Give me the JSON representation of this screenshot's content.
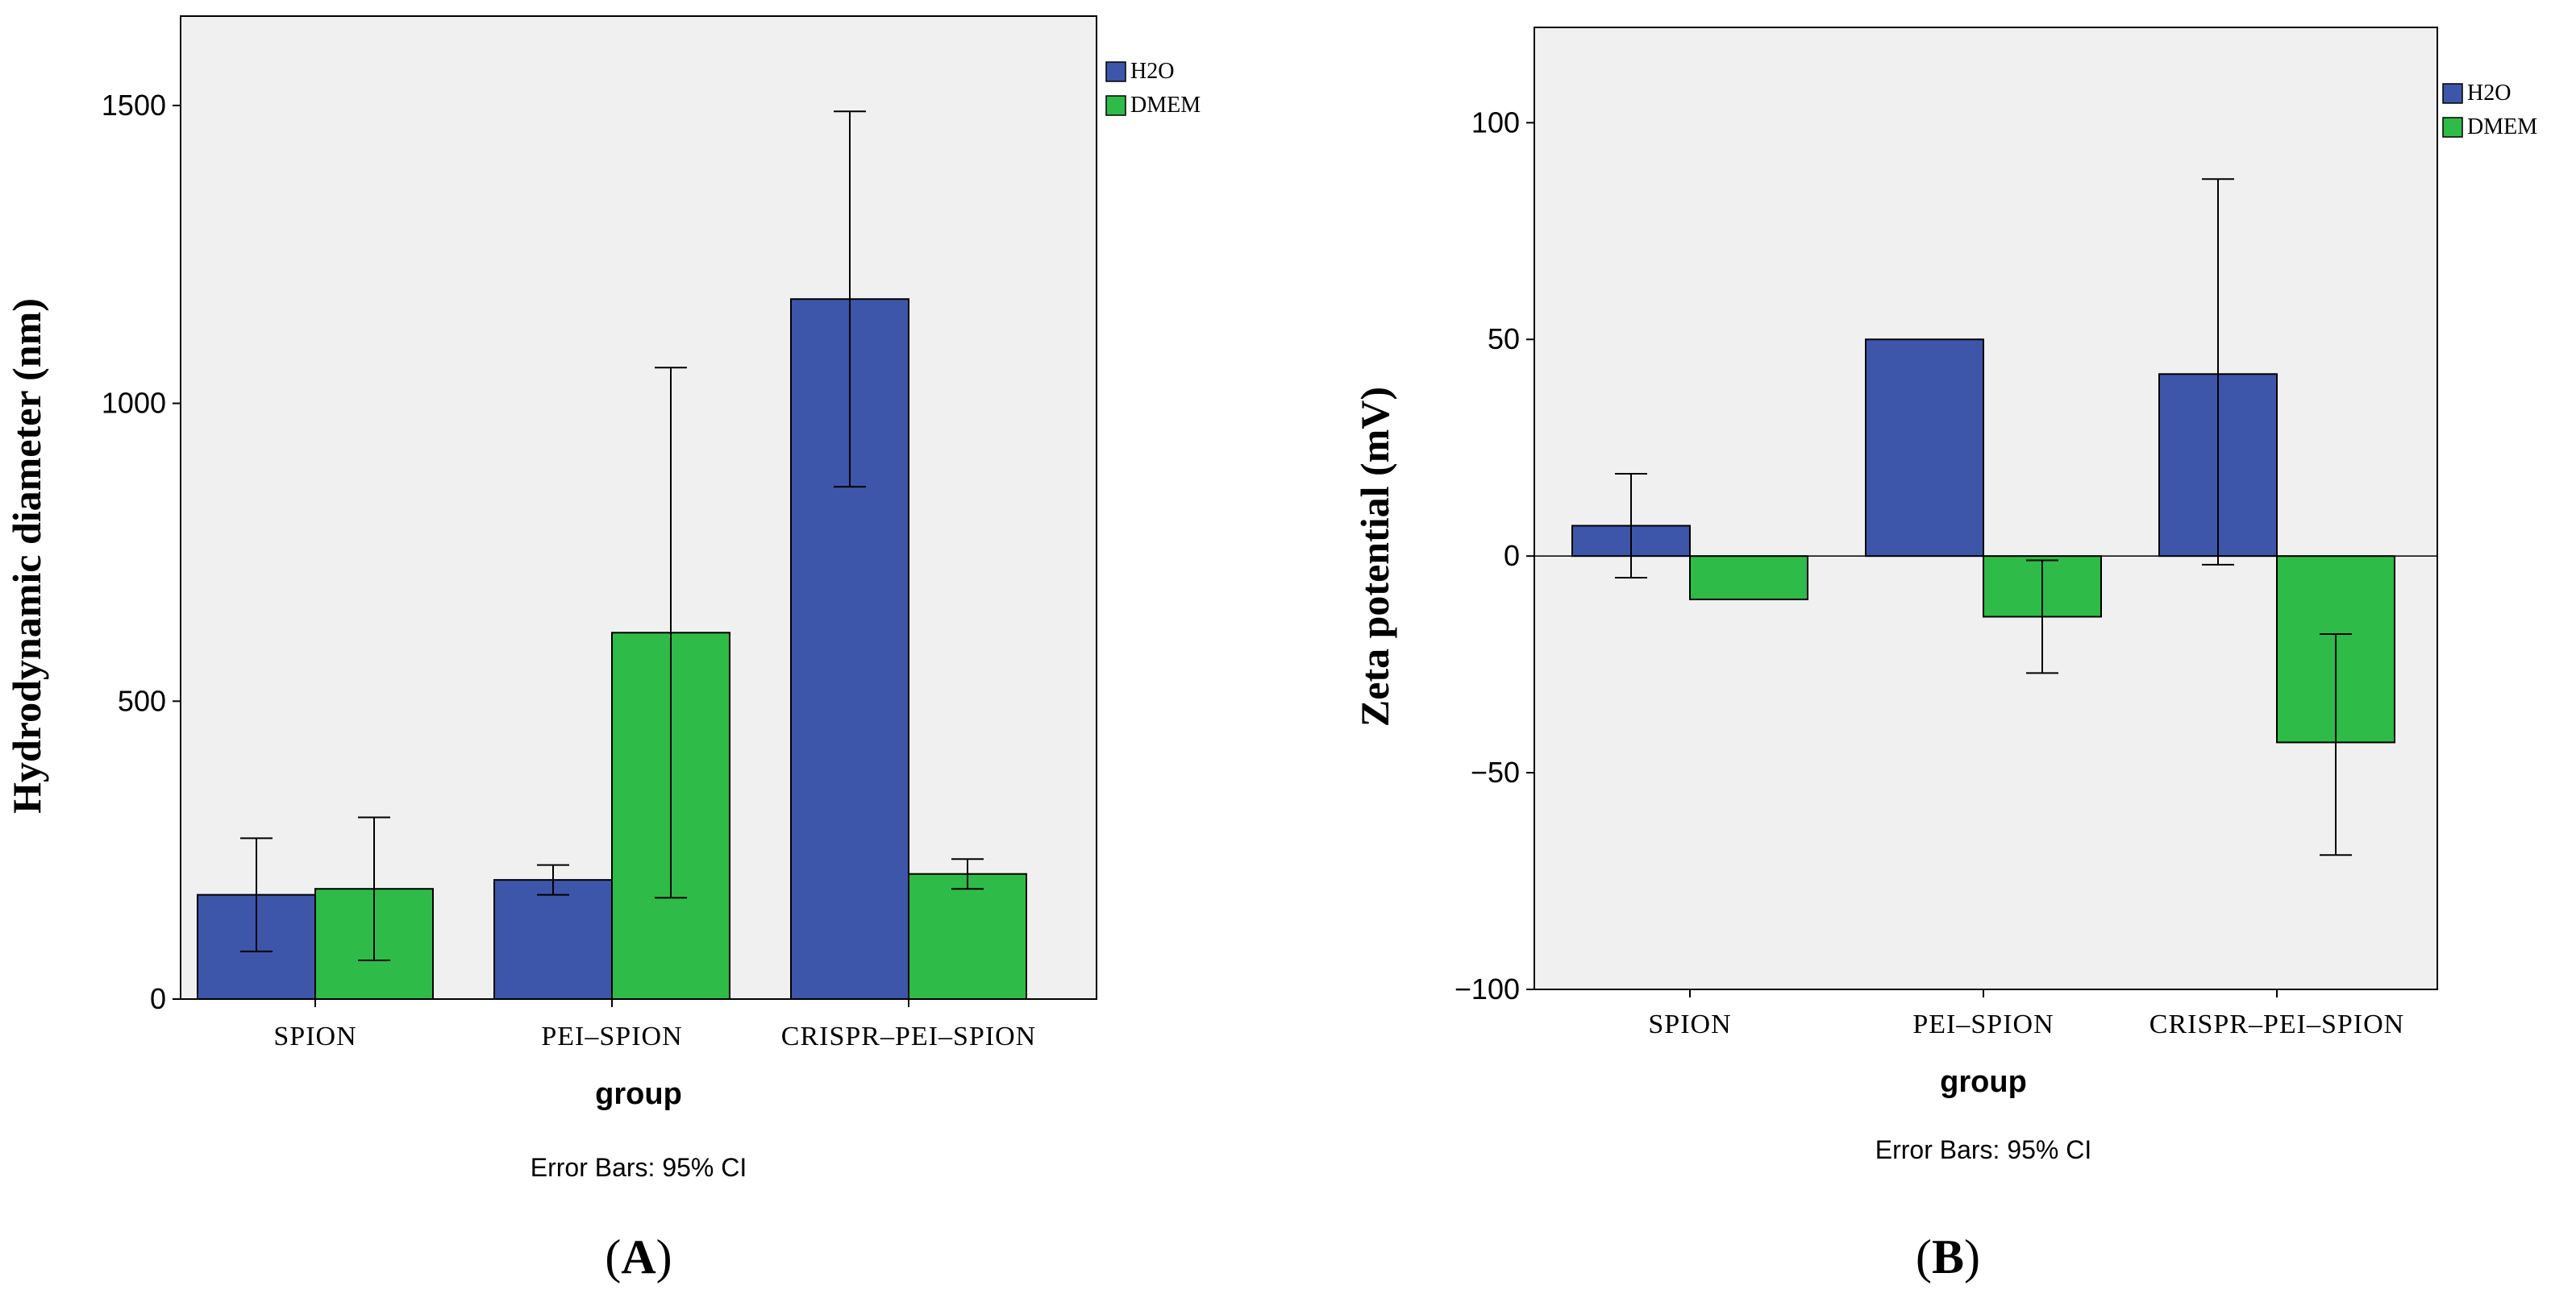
{
  "colors": {
    "h2o": "#3d56aa",
    "dmem": "#2fbb47",
    "plot_bg": "#f0f0f0",
    "axis": "#000000"
  },
  "chart_data": [
    {
      "type": "bar",
      "panel_label": "(A)",
      "ylabel": "Hydrodynamic diameter (nm)",
      "xlabel": "group",
      "footnote": "Error Bars: 95% CI",
      "categories": [
        "SPION",
        "PEI–SPION",
        "CRISPR–PEI–SPION"
      ],
      "ylim": [
        0,
        1650
      ],
      "yticks": [
        0,
        500,
        1000,
        1500
      ],
      "grid": false,
      "legend_position": "top-right",
      "series": [
        {
          "name": "H2O",
          "color_key": "h2o",
          "values": [
            175,
            200,
            1175
          ],
          "ci_low": [
            80,
            175,
            860
          ],
          "ci_high": [
            270,
            225,
            1490
          ]
        },
        {
          "name": "DMEM",
          "color_key": "dmem",
          "values": [
            185,
            615,
            210
          ],
          "ci_low": [
            65,
            170,
            185
          ],
          "ci_high": [
            305,
            1060,
            235
          ]
        }
      ]
    },
    {
      "type": "bar",
      "panel_label": "(B)",
      "ylabel": "Zeta potential (mV)",
      "xlabel": "group",
      "footnote": "Error Bars: 95% CI",
      "categories": [
        "SPION",
        "PEI–SPION",
        "CRISPR–PEI–SPION"
      ],
      "ylim": [
        -100,
        122
      ],
      "yticks": [
        -100,
        -50,
        0,
        50,
        100
      ],
      "grid": false,
      "legend_position": "top-right",
      "series": [
        {
          "name": "H2O",
          "color_key": "h2o",
          "values": [
            7,
            50,
            42
          ],
          "ci_low": [
            -5,
            null,
            -2
          ],
          "ci_high": [
            19,
            null,
            87
          ]
        },
        {
          "name": "DMEM",
          "color_key": "dmem",
          "values": [
            -10,
            -14,
            -43
          ],
          "ci_low": [
            null,
            -27,
            -69
          ],
          "ci_high": [
            null,
            -1,
            -18
          ]
        }
      ]
    }
  ]
}
